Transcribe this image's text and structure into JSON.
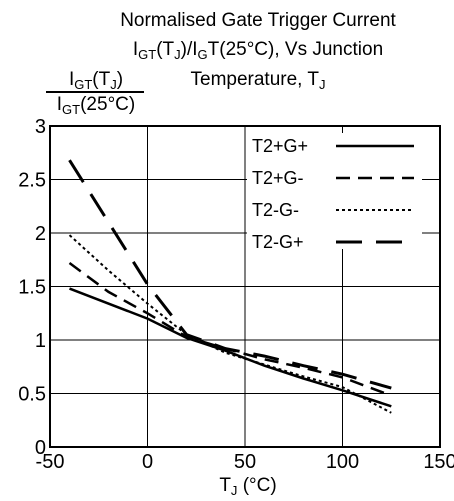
{
  "chart_data": {
    "type": "line",
    "title": {
      "line1": "Normalised Gate Trigger Current",
      "line2_a": "I",
      "line2_a_sub": "GT",
      "line2_b": "(T",
      "line2_b_sub": "J",
      "line2_c": ")/I",
      "line2_c_sub": "G",
      "line2_d": "T(25°C), Vs Junction",
      "line3": "Temperature, T",
      "line3_sub": "J"
    },
    "ylabel": {
      "num_a": "I",
      "num_a_sub": "GT",
      "num_b": "(T",
      "num_b_sub": "J",
      "num_c": ")",
      "den_a": "I",
      "den_a_sub": "GT",
      "den_b": "(25°C)"
    },
    "xlabel": {
      "a": "T",
      "a_sub": "J",
      "b": " (°C)"
    },
    "xlim": [
      -50,
      150
    ],
    "ylim": [
      0,
      3
    ],
    "x_ticks": [
      -50,
      0,
      50,
      100,
      150
    ],
    "y_ticks": [
      0,
      0.5,
      1,
      1.5,
      2,
      2.5,
      3
    ],
    "x_tick_labels": [
      "-50",
      "0",
      "50",
      "100",
      "150"
    ],
    "y_tick_labels": [
      "0",
      "0.5",
      "1",
      "1.5",
      "2",
      "2.5",
      "3"
    ],
    "grid": true,
    "legend_position": "top-right",
    "series": [
      {
        "name": "T2+G+",
        "dash": "solid",
        "x": [
          -40,
          0,
          20,
          40,
          60,
          80,
          100,
          125
        ],
        "y": [
          1.48,
          1.2,
          1.02,
          0.9,
          0.76,
          0.64,
          0.53,
          0.38
        ]
      },
      {
        "name": "T2+G-",
        "dash": "dashed",
        "x": [
          -40,
          -20,
          0,
          20,
          40,
          60,
          80,
          100,
          125
        ],
        "y": [
          1.72,
          1.45,
          1.25,
          1.03,
          0.92,
          0.82,
          0.74,
          0.65,
          0.48
        ]
      },
      {
        "name": "T2-G-",
        "dash": "dotted",
        "x": [
          -40,
          -20,
          0,
          20,
          40,
          60,
          80,
          100,
          125
        ],
        "y": [
          1.98,
          1.65,
          1.34,
          1.05,
          0.88,
          0.77,
          0.66,
          0.56,
          0.32
        ]
      },
      {
        "name": "T2-G+",
        "dash": "longdash",
        "x": [
          -40,
          -20,
          0,
          20,
          40,
          60,
          80,
          100,
          125
        ],
        "y": [
          2.68,
          2.1,
          1.52,
          1.05,
          0.92,
          0.85,
          0.76,
          0.68,
          0.55
        ]
      }
    ]
  }
}
